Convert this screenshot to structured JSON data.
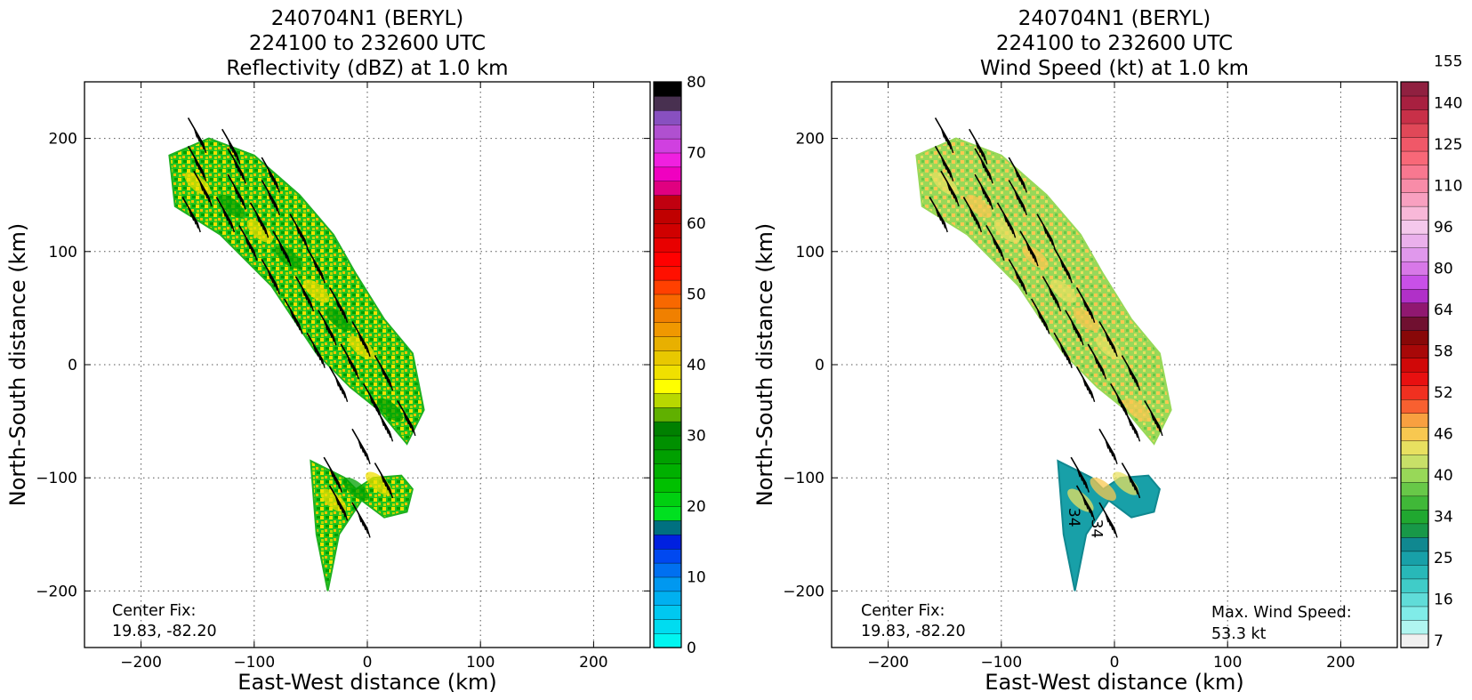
{
  "panels": [
    {
      "title_lines": [
        "240704N1 (BERYL)",
        "224100 to 232600 UTC",
        "Reflectivity (dBZ) at 1.0 km"
      ],
      "xlabel": "East-West distance (km)",
      "ylabel": "North-South distance (km)",
      "center_fix_label": "Center Fix:",
      "center_fix_value": "19.83, -82.20",
      "max_wind_label": "",
      "max_wind_value": "",
      "colorbar": {
        "ticks": [
          "0",
          "10",
          "20",
          "30",
          "40",
          "50",
          "60",
          "70",
          "80"
        ],
        "colors": [
          "#00f5f0",
          "#00dcf0",
          "#00c8f0",
          "#00b0f0",
          "#0098f0",
          "#0070f0",
          "#0048f0",
          "#0020e0",
          "#007080",
          "#00e020",
          "#00d010",
          "#00c000",
          "#00b000",
          "#00a000",
          "#009000",
          "#008000",
          "#60b000",
          "#b8d800",
          "#ffff00",
          "#f0e000",
          "#e8c800",
          "#e8b000",
          "#f09800",
          "#f08000",
          "#f86800",
          "#ff4000",
          "#ff1000",
          "#ff0000",
          "#e80000",
          "#d00000",
          "#c00000",
          "#c00010",
          "#e00080",
          "#f000c0",
          "#f020e0",
          "#d040e0",
          "#b050d0",
          "#8850c0",
          "#483050",
          "#000000"
        ]
      }
    },
    {
      "title_lines": [
        "240704N1 (BERYL)",
        "224100 to 232600 UTC",
        "Wind Speed (kt) at 1.0 km"
      ],
      "xlabel": "East-West distance (km)",
      "ylabel": "North-South distance (km)",
      "center_fix_label": "Center Fix:",
      "center_fix_value": "19.83, -82.20",
      "max_wind_label": "Max. Wind Speed:",
      "max_wind_value": "53.3 kt",
      "colorbar": {
        "ticks": [
          "7",
          "16",
          "25",
          "34",
          "40",
          "46",
          "52",
          "58",
          "64",
          "80",
          "96",
          "110",
          "125",
          "140",
          "155"
        ],
        "colors": [
          "#f0f0f0",
          "#b0f5f0",
          "#80ece8",
          "#60dcd8",
          "#40ccc8",
          "#28b8b8",
          "#18a0a8",
          "#108890",
          "#189848",
          "#20a830",
          "#40b838",
          "#68c848",
          "#98d858",
          "#c8e068",
          "#e8e060",
          "#f8c850",
          "#f8a040",
          "#f86030",
          "#f03020",
          "#e81010",
          "#d00808",
          "#a80808",
          "#880808",
          "#701030",
          "#901870",
          "#b030c8",
          "#c850e8",
          "#d878e8",
          "#e098ec",
          "#eab0ec",
          "#f4c8ec",
          "#f8b8d8",
          "#f8a0c0",
          "#f88ca8",
          "#f87890",
          "#f86878",
          "#f05868",
          "#e04858",
          "#c83048",
          "#a82040",
          "#902040"
        ]
      }
    }
  ],
  "chart_data": [
    {
      "type": "heatmap",
      "title": "240704N1 (BERYL) 224100 to 232600 UTC Reflectivity (dBZ) at 1.0 km",
      "xlabel": "East-West distance (km)",
      "ylabel": "North-South distance (km)",
      "xlim": [
        -250,
        250
      ],
      "ylim": [
        -250,
        250
      ],
      "xticks": [
        -200,
        -100,
        0,
        100,
        200
      ],
      "yticks": [
        -200,
        -100,
        0,
        100,
        200
      ],
      "grid": true,
      "colorbar_range": [
        0,
        80
      ],
      "colorbar_label": "dBZ",
      "echo_regions": [
        {
          "x": [
            -175,
            -140,
            -100,
            -60,
            -30,
            -10,
            15,
            40,
            50,
            35,
            10,
            -15,
            -45,
            -85,
            -130,
            -170
          ],
          "y": [
            185,
            200,
            185,
            150,
            115,
            80,
            40,
            10,
            -40,
            -70,
            -40,
            -20,
            10,
            70,
            115,
            140
          ]
        },
        {
          "x": [
            -50,
            -30,
            -20,
            -10,
            5,
            30,
            40,
            35,
            15,
            -5,
            -25,
            -35,
            -45
          ],
          "y": [
            -85,
            -95,
            -100,
            -110,
            -100,
            -98,
            -110,
            -130,
            -135,
            -120,
            -150,
            -200,
            -150
          ]
        }
      ],
      "barbs": [
        {
          "x": -145,
          "y": 195
        },
        {
          "x": -115,
          "y": 185
        },
        {
          "x": -145,
          "y": 170
        },
        {
          "x": -110,
          "y": 168
        },
        {
          "x": -80,
          "y": 160
        },
        {
          "x": -140,
          "y": 148
        },
        {
          "x": -110,
          "y": 145
        },
        {
          "x": -80,
          "y": 140
        },
        {
          "x": -150,
          "y": 125
        },
        {
          "x": -120,
          "y": 125
        },
        {
          "x": -90,
          "y": 120
        },
        {
          "x": -55,
          "y": 110
        },
        {
          "x": -100,
          "y": 100
        },
        {
          "x": -70,
          "y": 95
        },
        {
          "x": -40,
          "y": 80
        },
        {
          "x": -80,
          "y": 70
        },
        {
          "x": -50,
          "y": 55
        },
        {
          "x": -20,
          "y": 45
        },
        {
          "x": -60,
          "y": 35
        },
        {
          "x": -30,
          "y": 25
        },
        {
          "x": 0,
          "y": 15
        },
        {
          "x": -40,
          "y": 5
        },
        {
          "x": -10,
          "y": -5
        },
        {
          "x": 20,
          "y": -15
        },
        {
          "x": -20,
          "y": -25
        },
        {
          "x": 10,
          "y": -40
        },
        {
          "x": 40,
          "y": -55
        },
        {
          "x": 20,
          "y": -60
        },
        {
          "x": 0,
          "y": -80
        },
        {
          "x": -25,
          "y": -105
        },
        {
          "x": 20,
          "y": -110
        },
        {
          "x": -20,
          "y": -130
        },
        {
          "x": 0,
          "y": -145
        }
      ],
      "barb_direction_deg": 300,
      "annotations": [
        "Center Fix:",
        "19.83, -82.20"
      ]
    },
    {
      "type": "heatmap",
      "title": "240704N1 (BERYL) 224100 to 232600 UTC Wind Speed (kt) at 1.0 km",
      "xlabel": "East-West distance (km)",
      "ylabel": "North-South distance (km)",
      "xlim": [
        -250,
        250
      ],
      "ylim": [
        -250,
        250
      ],
      "xticks": [
        -200,
        -100,
        0,
        100,
        200
      ],
      "yticks": [
        -200,
        -100,
        0,
        100,
        200
      ],
      "grid": true,
      "colorbar_range": [
        7,
        155
      ],
      "colorbar_label": "kt",
      "max_wind_speed_kt": 53.3,
      "contour_labels": [
        "34",
        "34"
      ],
      "wind_regions": [
        {
          "x": [
            -175,
            -140,
            -100,
            -60,
            -30,
            -10,
            15,
            40,
            50,
            35,
            10,
            -15,
            -45,
            -85,
            -130,
            -170
          ],
          "y": [
            185,
            200,
            185,
            150,
            115,
            80,
            40,
            10,
            -40,
            -70,
            -40,
            -20,
            10,
            70,
            115,
            140
          ]
        },
        {
          "x": [
            -50,
            -30,
            -20,
            -10,
            5,
            30,
            40,
            35,
            15,
            -5,
            -25,
            -35,
            -45
          ],
          "y": [
            -85,
            -95,
            -100,
            -110,
            -100,
            -98,
            -110,
            -130,
            -135,
            -120,
            -150,
            -200,
            -150
          ]
        }
      ],
      "annotations": [
        "Center Fix:",
        "19.83, -82.20",
        "Max. Wind Speed:",
        "53.3 kt"
      ]
    }
  ]
}
